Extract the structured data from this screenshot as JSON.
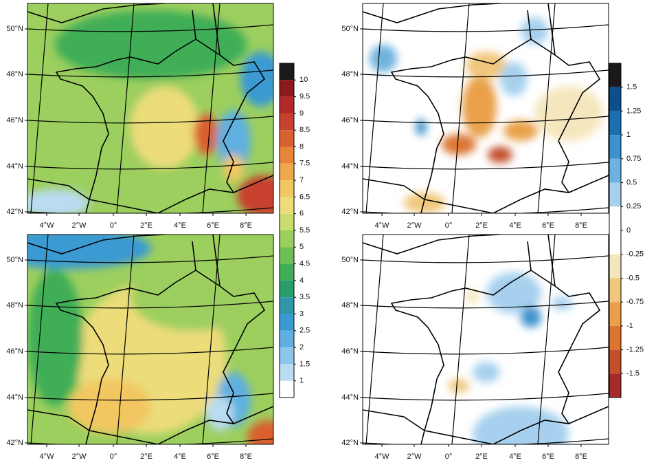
{
  "axes": {
    "lat_labels": [
      "50°N",
      "48°N",
      "46°N",
      "44°N",
      "42°N"
    ],
    "lon_labels": [
      "4°W",
      "2°W",
      "0°",
      "2°E",
      "4°E",
      "6°E",
      "8°E"
    ]
  },
  "colorbars": [
    {
      "ticks": [
        10,
        9.5,
        9,
        8.5,
        8,
        7.5,
        7,
        6.5,
        6,
        5.5,
        5,
        4.5,
        4,
        3.5,
        3,
        2.5,
        2,
        1.5,
        1
      ],
      "colors": [
        "#1a1a1a",
        "#8b1a1a",
        "#b2282b",
        "#c8402e",
        "#d9602f",
        "#e8853a",
        "#f0a84e",
        "#f2c762",
        "#ecdc7a",
        "#c9dc6e",
        "#9ccf5e",
        "#6dbf55",
        "#3fae57",
        "#2a9e6a",
        "#2f97a8",
        "#3a9ad2",
        "#5fb0e0",
        "#8cc6ea",
        "#b9dcf2",
        "#ffffff"
      ]
    },
    {
      "ticks": [
        1.5,
        1.25,
        1,
        0.75,
        0.5,
        0.25,
        0,
        -0.25,
        -0.5,
        -0.75,
        -1,
        -1.25,
        -1.5
      ],
      "colors": [
        "#1a1a1a",
        "#0c4f8f",
        "#1c70b2",
        "#3c92cc",
        "#6fb2df",
        "#a6d0ee",
        "#ffffff",
        "#ffffff",
        "#f5e6bd",
        "#f0c77c",
        "#e9a049",
        "#dc7530",
        "#c44f2d",
        "#a52a2a"
      ]
    }
  ]
}
